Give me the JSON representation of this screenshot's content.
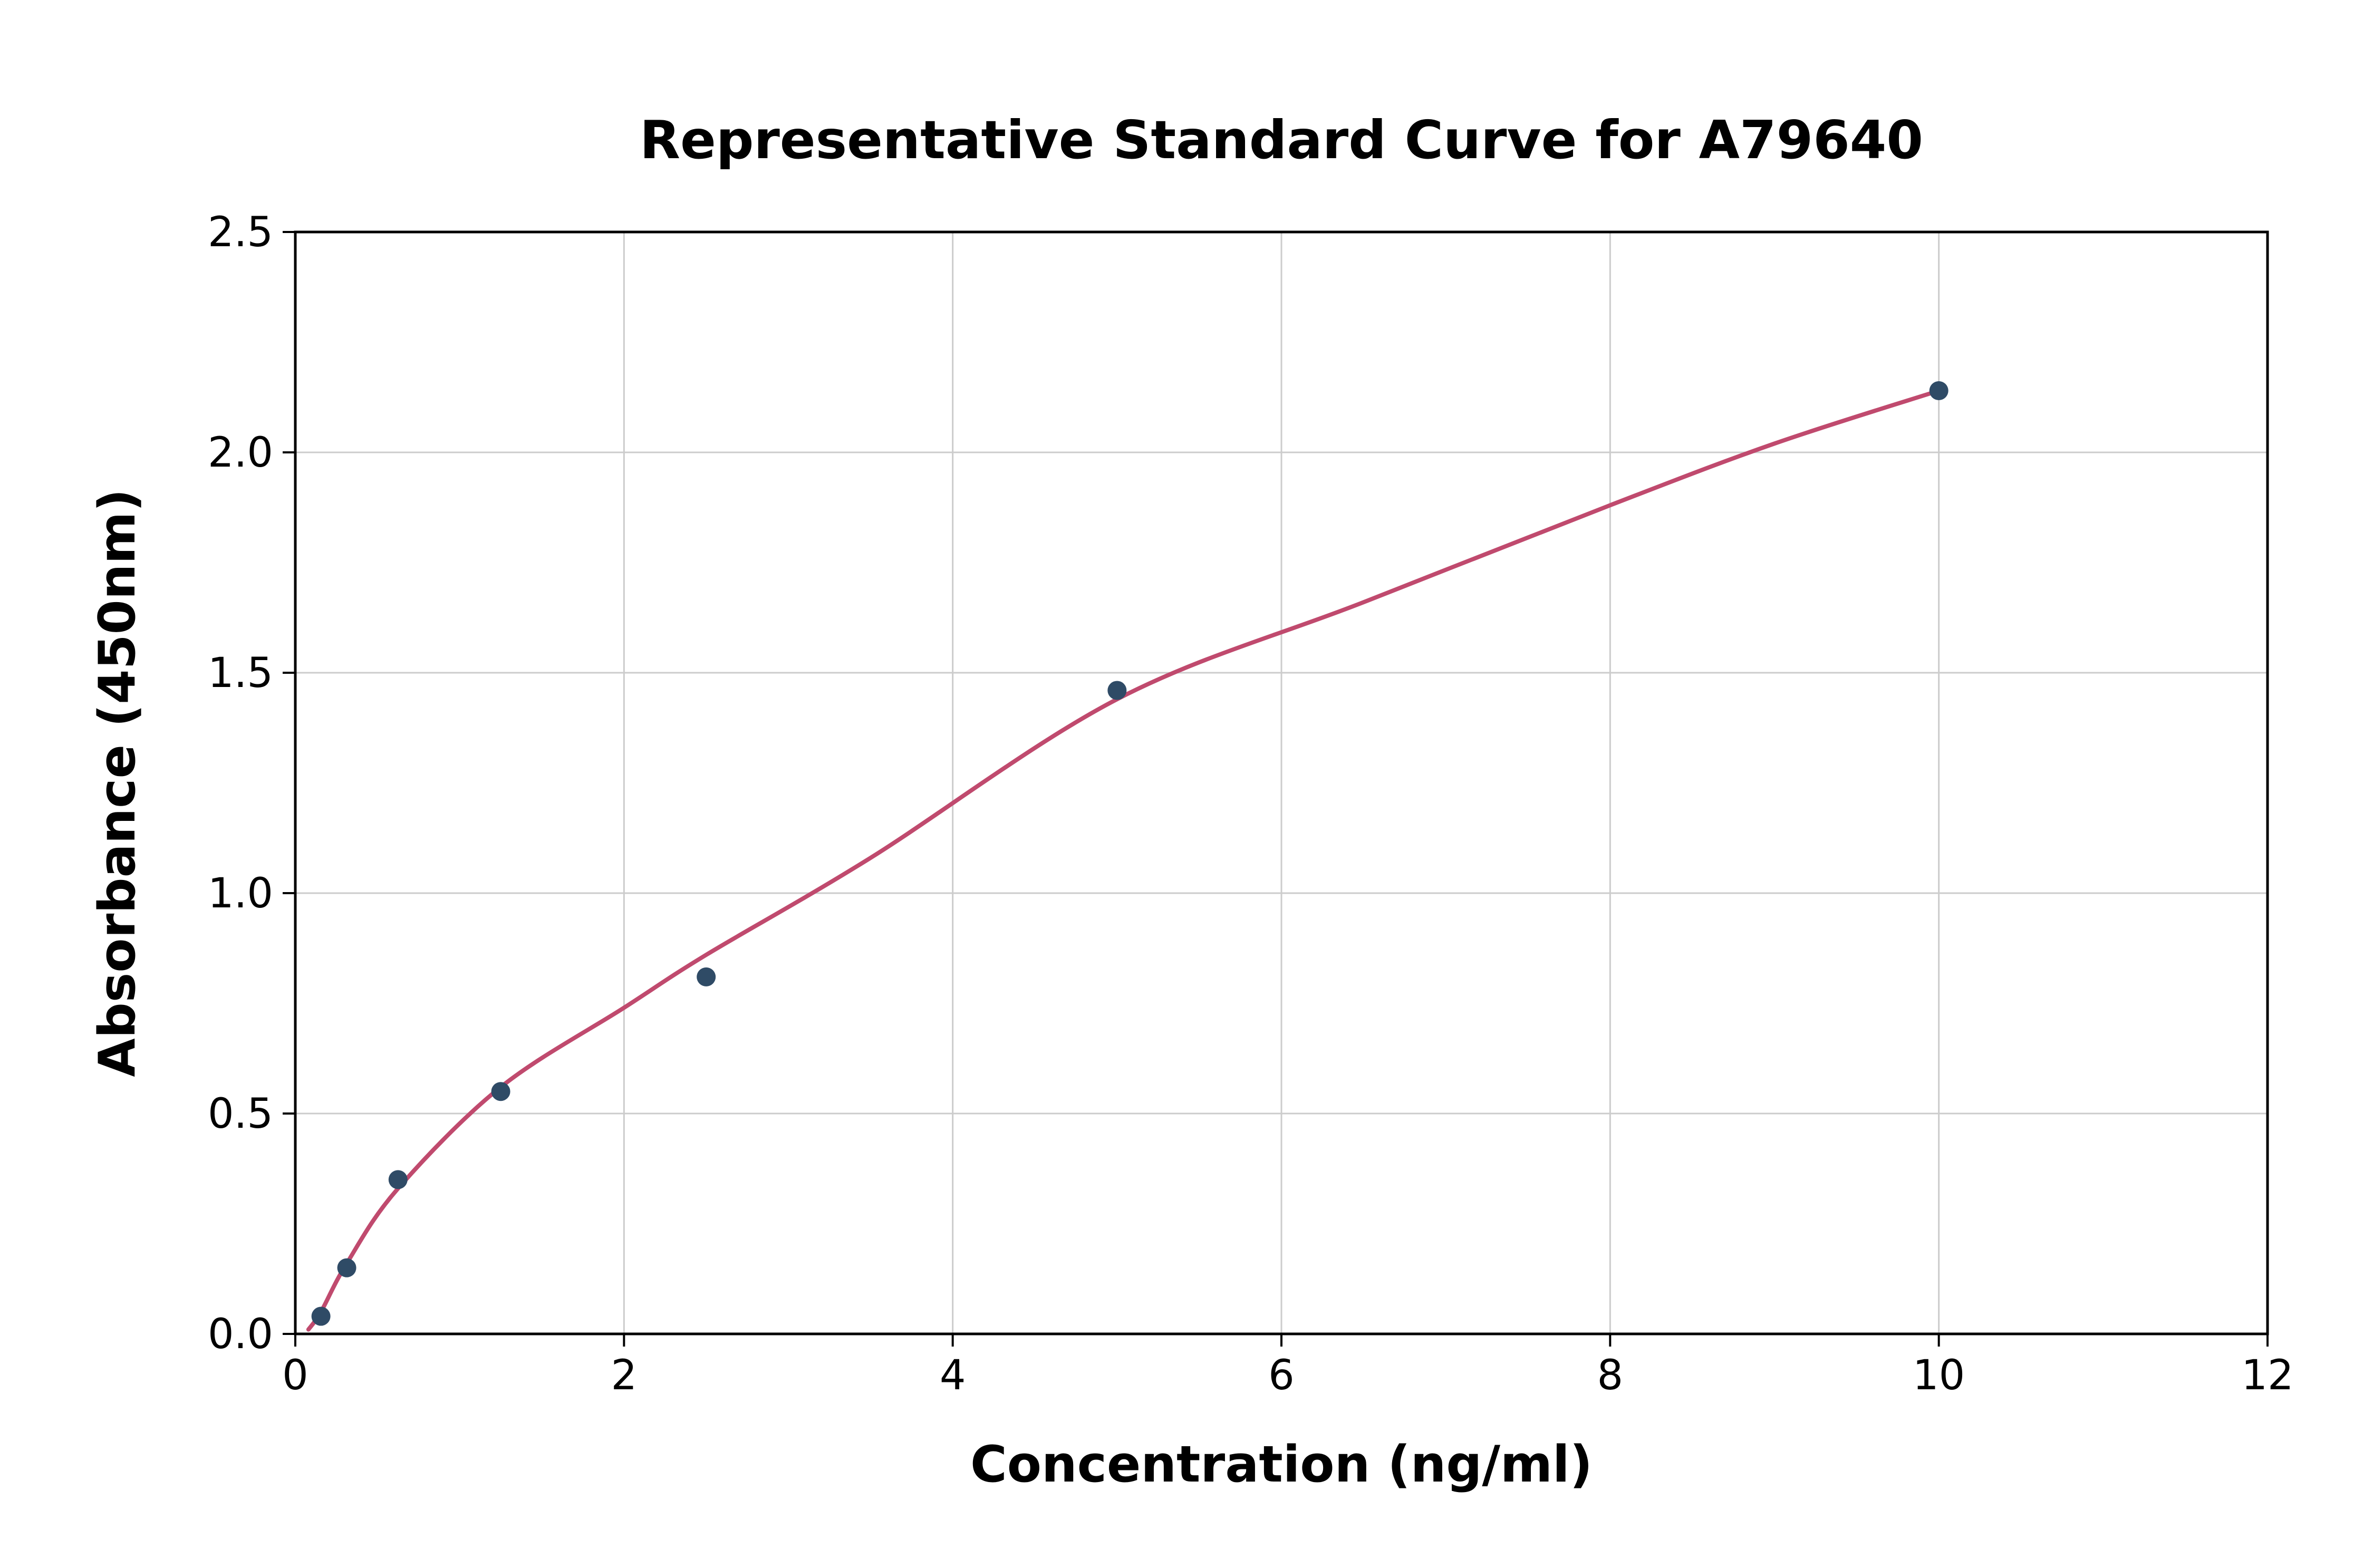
{
  "chart_data": {
    "type": "scatter",
    "title": "Representative Standard Curve for A79640",
    "xlabel": "Concentration (ng/ml)",
    "ylabel": "Absorbance (450nm)",
    "xlim": [
      0,
      12
    ],
    "ylim": [
      0,
      2.5
    ],
    "grid": true,
    "legend": "none",
    "x_ticks": [
      0,
      2,
      4,
      6,
      8,
      10,
      12
    ],
    "x_tick_labels": [
      "0",
      "2",
      "4",
      "6",
      "8",
      "10",
      "12"
    ],
    "y_ticks": [
      0.0,
      0.5,
      1.0,
      1.5,
      2.0,
      2.5
    ],
    "y_tick_labels": [
      "0.0",
      "0.5",
      "1.0",
      "1.5",
      "2.0",
      "2.5"
    ],
    "points": {
      "name": "standards",
      "x": [
        0.156,
        0.313,
        0.625,
        1.25,
        2.5,
        5.0,
        10.0
      ],
      "y": [
        0.04,
        0.15,
        0.35,
        0.55,
        0.81,
        1.46,
        2.14
      ]
    },
    "curve": {
      "name": "fitted-standard-curve",
      "x": [
        0.08,
        0.156,
        0.313,
        0.625,
        1.25,
        2.0,
        2.5,
        3.5,
        5.0,
        6.5,
        8.0,
        9.0,
        10.0
      ],
      "y": [
        0.01,
        0.05,
        0.16,
        0.33,
        0.56,
        0.74,
        0.86,
        1.08,
        1.44,
        1.66,
        1.88,
        2.02,
        2.14
      ]
    },
    "colors": {
      "points": "#2f4b66",
      "curve": "#c04a6e",
      "grid": "#cccccc",
      "axis": "#000000",
      "background": "#ffffff"
    }
  }
}
